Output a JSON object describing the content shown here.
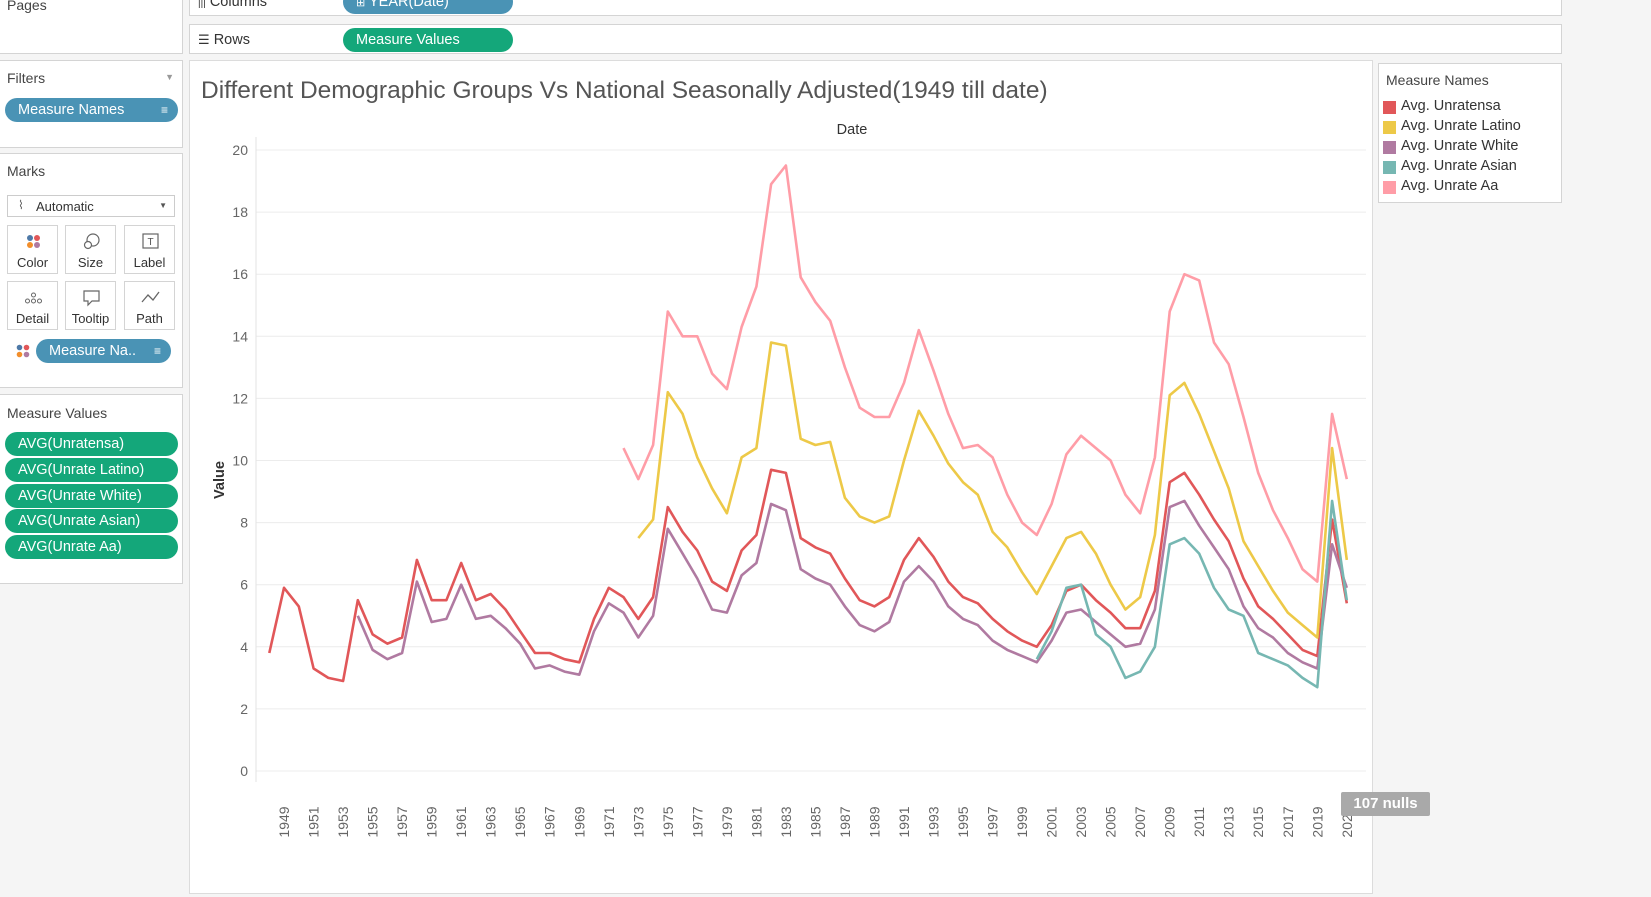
{
  "pages": {
    "title": "Pages"
  },
  "shelves": {
    "columns_label": "Columns",
    "columns_pill": "YEAR(Date)",
    "rows_label": "Rows",
    "rows_pill": "Measure Values"
  },
  "filters": {
    "title": "Filters",
    "pill": "Measure Names"
  },
  "marks": {
    "title": "Marks",
    "type": "Automatic",
    "cards": [
      {
        "label": "Color",
        "icon": "color-dots-icon"
      },
      {
        "label": "Size",
        "icon": "size-icon"
      },
      {
        "label": "Label",
        "icon": "label-icon"
      },
      {
        "label": "Detail",
        "icon": "detail-icon"
      },
      {
        "label": "Tooltip",
        "icon": "tooltip-icon"
      },
      {
        "label": "Path",
        "icon": "path-icon"
      }
    ],
    "color_pill": "Measure Na.."
  },
  "measure_values": {
    "title": "Measure Values",
    "items": [
      "AVG(Unratensa)",
      "AVG(Unrate Latino)",
      "AVG(Unrate White)",
      "AVG(Unrate Asian)",
      "AVG(Unrate Aa)"
    ]
  },
  "legend": {
    "title": "Measure Names",
    "items": [
      {
        "label": "Avg. Unratensa",
        "color": "#e15759"
      },
      {
        "label": "Avg. Unrate Latino",
        "color": "#edc948"
      },
      {
        "label": "Avg. Unrate White",
        "color": "#b07aa1"
      },
      {
        "label": "Avg. Unrate Asian",
        "color": "#76b7b2"
      },
      {
        "label": "Avg. Unrate Aa",
        "color": "#ff9da7"
      }
    ]
  },
  "nulls_badge": "107 nulls",
  "chart_data": {
    "type": "line",
    "title": "Different Demographic Groups Vs National Seasonally Adjusted(1949 till date)",
    "xlabel": "Date",
    "ylabel": "Value",
    "ylim": [
      0,
      20
    ],
    "yticks": [
      "0",
      "2",
      "4",
      "6",
      "8",
      "10",
      "12",
      "14",
      "16",
      "18",
      "20"
    ],
    "x": [
      1948,
      1949,
      1950,
      1951,
      1952,
      1953,
      1954,
      1955,
      1956,
      1957,
      1958,
      1959,
      1960,
      1961,
      1962,
      1963,
      1964,
      1965,
      1966,
      1967,
      1968,
      1969,
      1970,
      1971,
      1972,
      1973,
      1974,
      1975,
      1976,
      1977,
      1978,
      1979,
      1980,
      1981,
      1982,
      1983,
      1984,
      1985,
      1986,
      1987,
      1988,
      1989,
      1990,
      1991,
      1992,
      1993,
      1994,
      1995,
      1996,
      1997,
      1998,
      1999,
      2000,
      2001,
      2002,
      2003,
      2004,
      2005,
      2006,
      2007,
      2008,
      2009,
      2010,
      2011,
      2012,
      2013,
      2014,
      2015,
      2016,
      2017,
      2018,
      2019,
      2020,
      2021,
      2022
    ],
    "xtick_labels": [
      "1949",
      "1951",
      "1953",
      "1955",
      "1957",
      "1959",
      "1961",
      "1963",
      "1965",
      "1967",
      "1969",
      "1971",
      "1973",
      "1975",
      "1977",
      "1979",
      "1981",
      "1983",
      "1985",
      "1987",
      "1989",
      "1991",
      "1993",
      "1995",
      "1997",
      "1999",
      "2001",
      "2003",
      "2005",
      "2007",
      "2009",
      "2011",
      "2013",
      "2015",
      "2017",
      "2019",
      "2021"
    ],
    "series": [
      {
        "name": "Avg. Unratensa",
        "color": "#e15759",
        "values": [
          3.8,
          5.9,
          5.3,
          3.3,
          3.0,
          2.9,
          5.5,
          4.4,
          4.1,
          4.3,
          6.8,
          5.5,
          5.5,
          6.7,
          5.5,
          5.7,
          5.2,
          4.5,
          3.8,
          3.8,
          3.6,
          3.5,
          4.9,
          5.9,
          5.6,
          4.9,
          5.6,
          8.5,
          7.7,
          7.1,
          6.1,
          5.8,
          7.1,
          7.6,
          9.7,
          9.6,
          7.5,
          7.2,
          7.0,
          6.2,
          5.5,
          5.3,
          5.6,
          6.8,
          7.5,
          6.9,
          6.1,
          5.6,
          5.4,
          4.9,
          4.5,
          4.2,
          4.0,
          4.7,
          5.8,
          6.0,
          5.5,
          5.1,
          4.6,
          4.6,
          5.8,
          9.3,
          9.6,
          8.9,
          8.1,
          7.4,
          6.2,
          5.3,
          4.9,
          4.4,
          3.9,
          3.7,
          8.1,
          5.4,
          null
        ]
      },
      {
        "name": "Avg. Unrate Latino",
        "color": "#edc948",
        "values": [
          null,
          null,
          null,
          null,
          null,
          null,
          null,
          null,
          null,
          null,
          null,
          null,
          null,
          null,
          null,
          null,
          null,
          null,
          null,
          null,
          null,
          null,
          null,
          null,
          null,
          7.5,
          8.1,
          12.2,
          11.5,
          10.1,
          9.1,
          8.3,
          10.1,
          10.4,
          13.8,
          13.7,
          10.7,
          10.5,
          10.6,
          8.8,
          8.2,
          8.0,
          8.2,
          10.0,
          11.6,
          10.8,
          9.9,
          9.3,
          8.9,
          7.7,
          7.2,
          6.4,
          5.7,
          6.6,
          7.5,
          7.7,
          7.0,
          6.0,
          5.2,
          5.6,
          7.6,
          12.1,
          12.5,
          11.5,
          10.3,
          9.1,
          7.4,
          6.6,
          5.8,
          5.1,
          4.7,
          4.3,
          10.4,
          6.8,
          null
        ]
      },
      {
        "name": "Avg. Unrate White",
        "color": "#b07aa1",
        "values": [
          null,
          null,
          null,
          null,
          null,
          null,
          5.0,
          3.9,
          3.6,
          3.8,
          6.1,
          4.8,
          4.9,
          6.0,
          4.9,
          5.0,
          4.6,
          4.1,
          3.3,
          3.4,
          3.2,
          3.1,
          4.5,
          5.4,
          5.1,
          4.3,
          5.0,
          7.8,
          7.0,
          6.2,
          5.2,
          5.1,
          6.3,
          6.7,
          8.6,
          8.4,
          6.5,
          6.2,
          6.0,
          5.3,
          4.7,
          4.5,
          4.8,
          6.1,
          6.6,
          6.1,
          5.3,
          4.9,
          4.7,
          4.2,
          3.9,
          3.7,
          3.5,
          4.2,
          5.1,
          5.2,
          4.8,
          4.4,
          4.0,
          4.1,
          5.2,
          8.5,
          8.7,
          7.9,
          7.2,
          6.5,
          5.3,
          4.6,
          4.3,
          3.8,
          3.5,
          3.3,
          7.3,
          5.9,
          null
        ]
      },
      {
        "name": "Avg. Unrate Asian",
        "color": "#76b7b2",
        "values": [
          null,
          null,
          null,
          null,
          null,
          null,
          null,
          null,
          null,
          null,
          null,
          null,
          null,
          null,
          null,
          null,
          null,
          null,
          null,
          null,
          null,
          null,
          null,
          null,
          null,
          null,
          null,
          null,
          null,
          null,
          null,
          null,
          null,
          null,
          null,
          null,
          null,
          null,
          null,
          null,
          null,
          null,
          null,
          null,
          null,
          null,
          null,
          null,
          null,
          null,
          null,
          null,
          3.6,
          4.5,
          5.9,
          6.0,
          4.4,
          4.0,
          3.0,
          3.2,
          4.0,
          7.3,
          7.5,
          7.0,
          5.9,
          5.2,
          5.0,
          3.8,
          3.6,
          3.4,
          3.0,
          2.7,
          8.7,
          5.5,
          null
        ]
      },
      {
        "name": "Avg. Unrate Aa",
        "color": "#ff9da7",
        "values": [
          null,
          null,
          null,
          null,
          null,
          null,
          null,
          null,
          null,
          null,
          null,
          null,
          null,
          null,
          null,
          null,
          null,
          null,
          null,
          null,
          null,
          null,
          null,
          null,
          10.4,
          9.4,
          10.5,
          14.8,
          14.0,
          14.0,
          12.8,
          12.3,
          14.3,
          15.6,
          18.9,
          19.5,
          15.9,
          15.1,
          14.5,
          13.0,
          11.7,
          11.4,
          11.4,
          12.5,
          14.2,
          12.9,
          11.5,
          10.4,
          10.5,
          10.1,
          8.9,
          8.0,
          7.6,
          8.6,
          10.2,
          10.8,
          10.4,
          10.0,
          8.9,
          8.3,
          10.1,
          14.8,
          16.0,
          15.8,
          13.8,
          13.1,
          11.4,
          9.6,
          8.4,
          7.5,
          6.5,
          6.1,
          11.5,
          9.4,
          null
        ]
      }
    ],
    "grid": true,
    "legend_position": "right"
  }
}
